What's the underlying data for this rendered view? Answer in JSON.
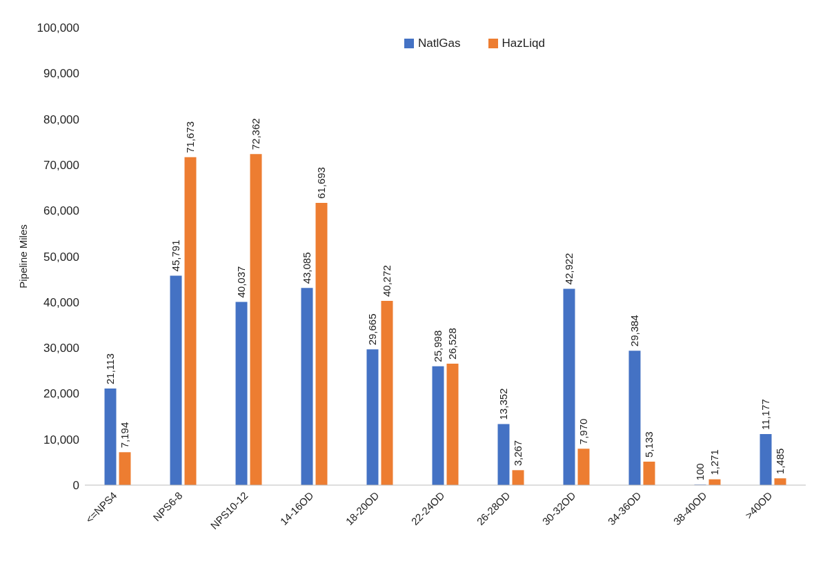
{
  "chart_data": {
    "type": "bar",
    "ylabel": "Pipeline Miles",
    "categories": [
      "<=NPS4",
      "NPS6-8",
      "NPS10-12",
      "14-16OD",
      "18-20OD",
      "22-24OD",
      "26-28OD",
      "30-32OD",
      "34-36OD",
      "38-40OD",
      ">40OD"
    ],
    "series": [
      {
        "name": "NatlGas",
        "color": "#4472c4",
        "values": [
          21113,
          45791,
          40037,
          43085,
          29665,
          25998,
          13352,
          42922,
          29384,
          100,
          11177
        ],
        "value_labels": [
          "21,113",
          "45,791",
          "40,037",
          "43,085",
          "29,665",
          "25,998",
          "13,352",
          "42,922",
          "29,384",
          "100",
          "11,177"
        ]
      },
      {
        "name": "HazLiqd",
        "color": "#ed7d31",
        "values": [
          7194,
          71673,
          72362,
          61693,
          40272,
          26528,
          3267,
          7970,
          5133,
          1271,
          1485
        ],
        "value_labels": [
          "7,194",
          "71,673",
          "72,362",
          "61,693",
          "40,272",
          "26,528",
          "3,267",
          "7,970",
          "5,133",
          "1,271",
          "1,485"
        ]
      }
    ],
    "ylim": [
      0,
      100000
    ],
    "yticks": [
      {
        "value": 0,
        "label": "0"
      },
      {
        "value": 10000,
        "label": "10,000"
      },
      {
        "value": 20000,
        "label": "20,000"
      },
      {
        "value": 30000,
        "label": "30,000"
      },
      {
        "value": 40000,
        "label": "40,000"
      },
      {
        "value": 50000,
        "label": "50,000"
      },
      {
        "value": 60000,
        "label": "60,000"
      },
      {
        "value": 70000,
        "label": "70,000"
      },
      {
        "value": 80000,
        "label": "80,000"
      },
      {
        "value": 90000,
        "label": "90,000"
      },
      {
        "value": 100000,
        "label": "100,000"
      }
    ],
    "grid": false,
    "legend": "top"
  }
}
